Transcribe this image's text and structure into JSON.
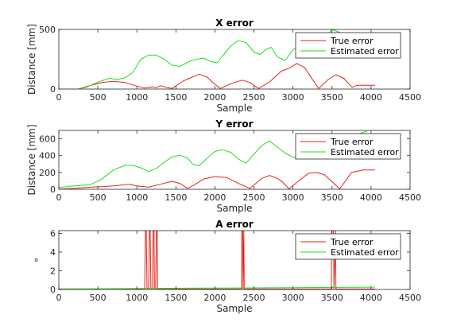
{
  "chart_data": [
    {
      "type": "line",
      "title": "X error",
      "xlabel": "Sample",
      "ylabel": "Distance [mm]",
      "xlim": [
        0,
        4500
      ],
      "ylim": [
        0,
        500
      ],
      "xticks": [
        0,
        500,
        1000,
        1500,
        2000,
        2500,
        3000,
        3500,
        4000,
        4500
      ],
      "yticks": [
        0,
        500
      ],
      "legend_position": "top-right",
      "series": [
        {
          "name": "True error",
          "color": "#e0231b",
          "x": [
            0,
            250,
            400,
            550,
            700,
            850,
            1000,
            1100,
            1200,
            1250,
            1300,
            1380,
            1450,
            1600,
            1800,
            1900,
            2000,
            2070,
            2200,
            2350,
            2450,
            2560,
            2700,
            2850,
            2950,
            3050,
            3150,
            3250,
            3330,
            3450,
            3550,
            3650,
            3760,
            3820,
            4050
          ],
          "y": [
            0,
            0,
            30,
            55,
            65,
            55,
            25,
            8,
            18,
            12,
            28,
            15,
            5,
            70,
            125,
            100,
            40,
            5,
            45,
            75,
            55,
            5,
            60,
            150,
            175,
            215,
            180,
            80,
            5,
            80,
            120,
            90,
            15,
            32,
            32
          ]
        },
        {
          "name": "Estimated error",
          "color": "#22dd22",
          "x": [
            0,
            250,
            350,
            450,
            550,
            650,
            750,
            850,
            950,
            1050,
            1150,
            1250,
            1350,
            1450,
            1550,
            1700,
            1850,
            1950,
            2030,
            2100,
            2200,
            2300,
            2400,
            2500,
            2580,
            2650,
            2720,
            2800,
            2900,
            3000,
            3100,
            3200,
            3300,
            3400,
            3500,
            3580,
            3650
          ],
          "y": [
            0,
            0,
            15,
            45,
            70,
            90,
            80,
            95,
            140,
            250,
            285,
            285,
            250,
            200,
            190,
            240,
            260,
            230,
            220,
            280,
            360,
            405,
            390,
            310,
            290,
            330,
            350,
            270,
            240,
            330,
            370,
            380,
            390,
            420,
            500,
            480,
            460
          ]
        }
      ]
    },
    {
      "type": "line",
      "title": "Y error",
      "xlabel": "Sample",
      "ylabel": "Distance [mm]",
      "xlim": [
        0,
        4500
      ],
      "ylim": [
        0,
        700
      ],
      "xticks": [
        0,
        500,
        1000,
        1500,
        2000,
        2500,
        3000,
        3500,
        4000,
        4500
      ],
      "yticks": [
        0,
        200,
        400,
        600
      ],
      "legend_position": "top-right",
      "series": [
        {
          "name": "True error",
          "color": "#e0231b",
          "x": [
            0,
            200,
            400,
            550,
            700,
            900,
            1000,
            1150,
            1300,
            1450,
            1550,
            1650,
            1750,
            1850,
            2000,
            2150,
            2300,
            2450,
            2600,
            2700,
            2800,
            2850,
            2950,
            3100,
            3200,
            3300,
            3400,
            3500,
            3600,
            3750,
            3900,
            4050
          ],
          "y": [
            0,
            10,
            25,
            30,
            40,
            60,
            40,
            25,
            60,
            95,
            70,
            10,
            60,
            120,
            150,
            140,
            70,
            10,
            130,
            165,
            130,
            100,
            5,
            120,
            190,
            200,
            175,
            90,
            5,
            200,
            230,
            230
          ]
        },
        {
          "name": "Estimated error",
          "color": "#22dd22",
          "x": [
            0,
            200,
            400,
            550,
            700,
            850,
            950,
            1050,
            1150,
            1250,
            1350,
            1450,
            1550,
            1650,
            1720,
            1800,
            1900,
            2000,
            2100,
            2200,
            2300,
            2400,
            2500,
            2600,
            2700,
            2800,
            2900,
            3000,
            3100,
            3200,
            3300,
            3400,
            3500,
            3600,
            3700,
            3800,
            3950
          ],
          "y": [
            20,
            40,
            55,
            120,
            230,
            285,
            285,
            255,
            210,
            250,
            320,
            385,
            405,
            370,
            295,
            280,
            370,
            450,
            470,
            440,
            360,
            310,
            420,
            520,
            575,
            500,
            430,
            380,
            360,
            400,
            470,
            540,
            580,
            600,
            620,
            650,
            690
          ]
        }
      ]
    },
    {
      "type": "line",
      "title": "A error",
      "xlabel": "Sample",
      "ylabel": "°",
      "xlim": [
        0,
        4500
      ],
      "ylim": [
        0,
        6.3
      ],
      "xticks": [
        0,
        500,
        1000,
        1500,
        2000,
        2500,
        3000,
        3500,
        4000,
        4500
      ],
      "yticks": [
        0,
        2,
        4,
        6
      ],
      "legend_position": "top-right",
      "series": [
        {
          "name": "True error",
          "color": "#e0231b",
          "x": [
            0,
            1100,
            1110,
            1120,
            1130,
            1150,
            1160,
            1170,
            1180,
            1200,
            1210,
            1220,
            1225,
            1240,
            1250,
            1260,
            1265,
            2340,
            2345,
            2355,
            2360,
            2370,
            2375,
            3490,
            3495,
            3520,
            3525,
            3545,
            3550,
            4050
          ],
          "y": [
            0.05,
            0.05,
            6.3,
            6.3,
            0.05,
            0.05,
            6.3,
            6.3,
            0.05,
            0.05,
            6.3,
            6.3,
            0.05,
            0.05,
            6.3,
            6.3,
            0.05,
            0.05,
            6.3,
            6.3,
            0.05,
            6.3,
            0.05,
            0.05,
            6.3,
            6.3,
            0.05,
            6.3,
            0.05,
            0.05
          ]
        },
        {
          "name": "Estimated error",
          "color": "#22dd22",
          "x": [
            0,
            1000,
            2000,
            3000,
            4050
          ],
          "y": [
            0.05,
            0.1,
            0.15,
            0.2,
            0.25
          ]
        }
      ]
    }
  ]
}
